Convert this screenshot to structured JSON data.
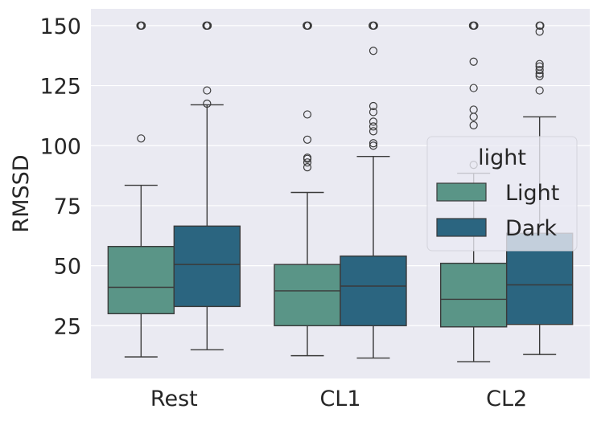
{
  "chart_data": {
    "type": "boxplot",
    "title": "",
    "xlabel": "",
    "ylabel": "RMSSD",
    "ylim": [
      3,
      157
    ],
    "yticks": [
      25,
      50,
      75,
      100,
      125,
      150
    ],
    "grid": true,
    "categories": [
      "Rest",
      "CL1",
      "CL2"
    ],
    "legend": {
      "title": "light",
      "position": "upper-right",
      "entries": [
        "Light",
        "Dark"
      ]
    },
    "colors": {
      "background": "#EAEAF2",
      "grid": "#FFFFFF",
      "edge": "#3a3a3a",
      "Light": "#5A9587",
      "Dark": "#2B6580"
    },
    "series": [
      {
        "name": "Light",
        "boxes": [
          {
            "category": "Rest",
            "whislo": 12,
            "q1": 30,
            "med": 41,
            "q3": 58,
            "whishi": 83.5,
            "fliers": [
              103,
              150,
              150,
              150
            ]
          },
          {
            "category": "CL1",
            "whislo": 12.5,
            "q1": 25,
            "med": 39.5,
            "q3": 50.5,
            "whishi": 80.5,
            "fliers": [
              91,
              93,
              94.5,
              95,
              102.5,
              113,
              150,
              150,
              150
            ]
          },
          {
            "category": "CL2",
            "whislo": 10,
            "q1": 24.5,
            "med": 36,
            "q3": 51,
            "whishi": 88.5,
            "fliers": [
              92,
              108.5,
              112,
              115,
              124,
              135,
              150,
              150,
              150
            ]
          }
        ]
      },
      {
        "name": "Dark",
        "boxes": [
          {
            "category": "Rest",
            "whislo": 15,
            "q1": 33,
            "med": 50.5,
            "q3": 66.5,
            "whishi": 117,
            "fliers": [
              117.5,
              123,
              150,
              150,
              150
            ]
          },
          {
            "category": "CL1",
            "whislo": 11.5,
            "q1": 25,
            "med": 41.5,
            "q3": 54,
            "whishi": 95.5,
            "fliers": [
              100,
              101,
              106,
              108,
              110,
              114,
              116.5,
              139.5,
              150,
              150,
              150
            ]
          },
          {
            "category": "CL2",
            "whislo": 13,
            "q1": 25.5,
            "med": 42,
            "q3": 63.5,
            "whishi": 112,
            "fliers": [
              123,
              129,
              130,
              131.5,
              133,
              134,
              147.5,
              150,
              150
            ]
          }
        ]
      }
    ]
  }
}
